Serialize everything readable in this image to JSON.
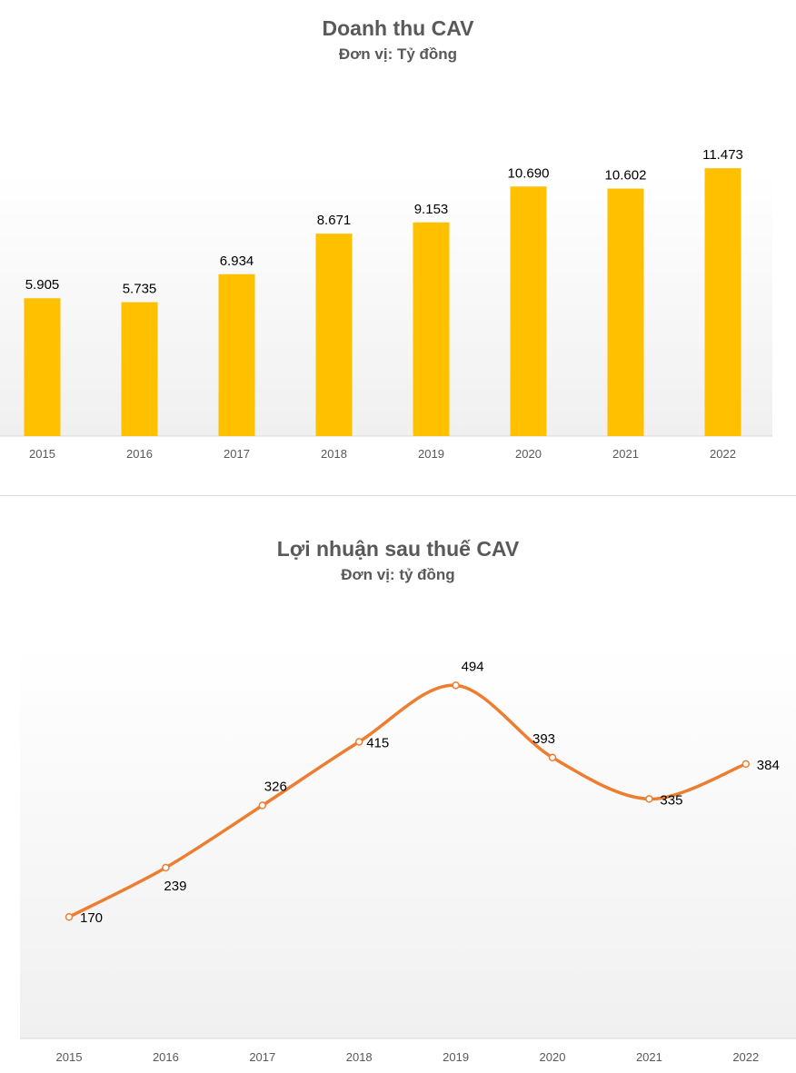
{
  "chart_data": [
    {
      "type": "bar",
      "title": "Doanh thu CAV",
      "subtitle": "Đơn vị: Tỷ đồng",
      "categories": [
        "2015",
        "2016",
        "2017",
        "2018",
        "2019",
        "2020",
        "2021",
        "2022"
      ],
      "values": [
        5905,
        5735,
        6934,
        8671,
        9153,
        10690,
        10602,
        11473
      ],
      "value_labels": [
        "5.905",
        "5.735",
        "6.934",
        "8.671",
        "9.153",
        "10.690",
        "10.602",
        "11.473"
      ],
      "ylim": [
        0,
        12000
      ],
      "grid": false,
      "legend": "none",
      "colors": {
        "bar": "#FFC000",
        "axis": "#d9d9d9",
        "text": "#000000",
        "tick": "#595959"
      }
    },
    {
      "type": "line",
      "title": "Lợi nhuận sau thuế CAV",
      "subtitle": "Đơn vị: tỷ đồng",
      "categories": [
        "2015",
        "2016",
        "2017",
        "2018",
        "2019",
        "2020",
        "2021",
        "2022"
      ],
      "values": [
        170,
        239,
        326,
        415,
        494,
        393,
        335,
        384
      ],
      "value_labels": [
        "170",
        "239",
        "326",
        "415",
        "494",
        "393",
        "335",
        "384"
      ],
      "ylim": [
        0,
        530
      ],
      "smooth": true,
      "markers": "hollow-circle",
      "grid": false,
      "legend": "none",
      "colors": {
        "line": "#ED7D31",
        "axis": "#d9d9d9",
        "text": "#000000",
        "tick": "#595959"
      }
    }
  ]
}
